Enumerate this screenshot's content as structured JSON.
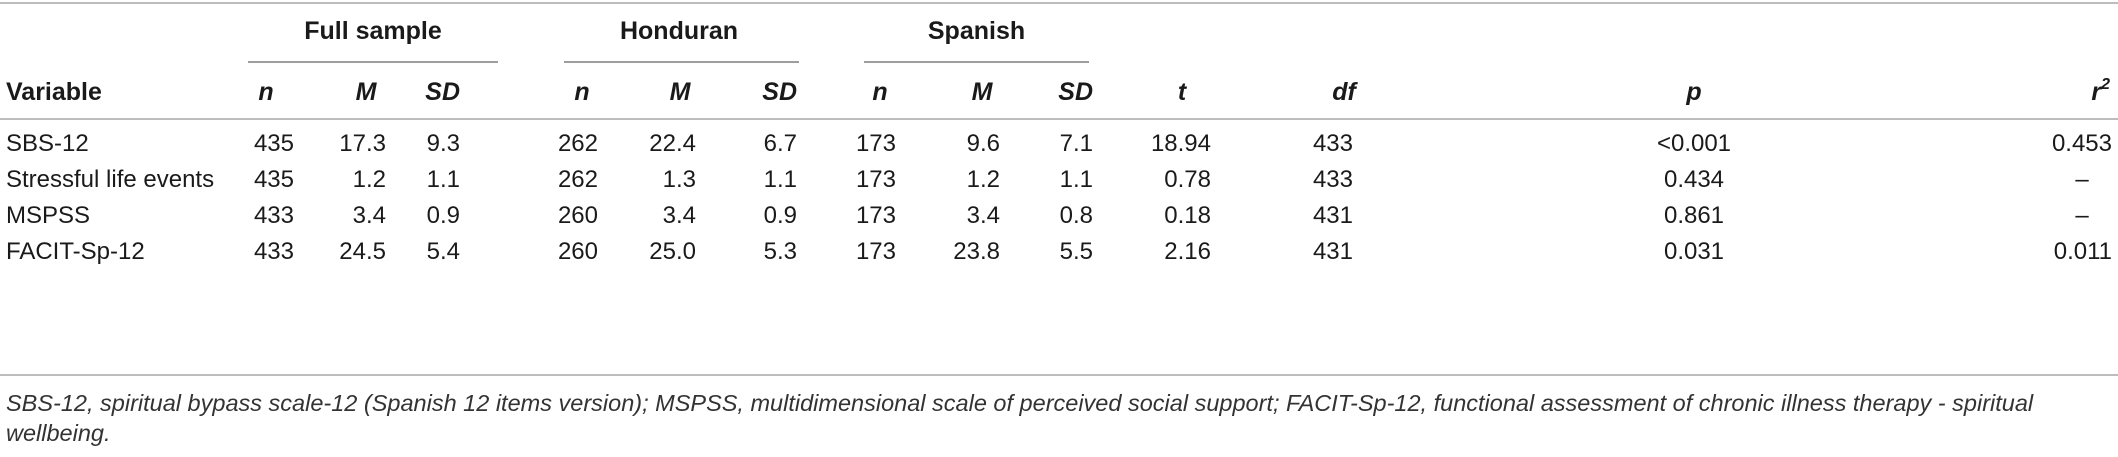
{
  "table": {
    "groups": [
      {
        "label": "Full sample"
      },
      {
        "label": "Honduran"
      },
      {
        "label": "Spanish"
      }
    ],
    "column_headers": {
      "variable": "Variable",
      "n": "n",
      "M": "M",
      "SD": "SD",
      "t": "t",
      "df": "df",
      "p": "p",
      "r": "r",
      "r_sup": "2"
    },
    "rows": [
      {
        "variable": "SBS-12",
        "cells": [
          "435",
          "17.3",
          "9.3",
          "262",
          "22.4",
          "6.7",
          "173",
          "9.6",
          "7.1",
          "18.94",
          "433",
          "<0.001",
          "0.453"
        ]
      },
      {
        "variable": "Stressful life events",
        "cells": [
          "435",
          "1.2",
          "1.1",
          "262",
          "1.3",
          "1.1",
          "173",
          "1.2",
          "1.1",
          "0.78",
          "433",
          "0.434",
          "–"
        ]
      },
      {
        "variable": "MSPSS",
        "cells": [
          "433",
          "3.4",
          "0.9",
          "260",
          "3.4",
          "0.9",
          "173",
          "3.4",
          "0.8",
          "0.18",
          "431",
          "0.861",
          "–"
        ]
      },
      {
        "variable": "FACIT-Sp-12",
        "cells": [
          "433",
          "24.5",
          "5.4",
          "260",
          "25.0",
          "5.3",
          "173",
          "23.8",
          "5.5",
          "2.16",
          "431",
          "0.031",
          "0.011"
        ]
      }
    ],
    "footnote": "SBS-12, spiritual bypass scale-12 (Spanish 12 items version); MSPSS, multidimensional scale of perceived social support; FACIT-Sp-12, functional assessment of chronic illness therapy - spiritual wellbeing."
  }
}
